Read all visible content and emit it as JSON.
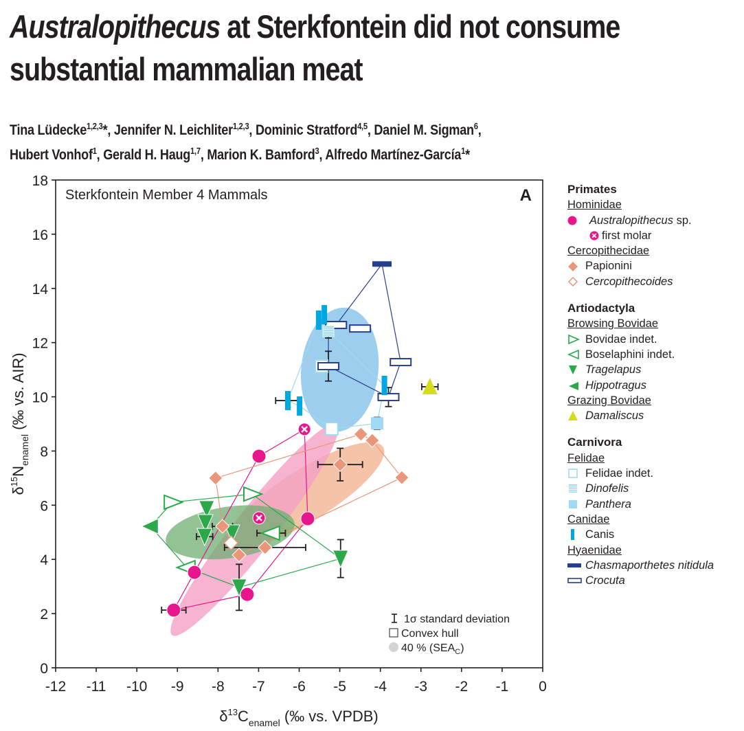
{
  "paper": {
    "title_italic": "Australopithecus",
    "title_rest_line1": " at Sterkfontein did not consume",
    "title_line2": "substantial mammalian meat",
    "authors": [
      {
        "name": "Tina Lüdecke",
        "sup": "1,2,3",
        "mark": "*",
        "sep": ", "
      },
      {
        "name": "Jennifer N. Leichliter",
        "sup": "1,2,3",
        "mark": "",
        "sep": ", "
      },
      {
        "name": "Dominic Stratford",
        "sup": "4,5",
        "mark": "",
        "sep": ", "
      },
      {
        "name": "Daniel M. Sigman",
        "sup": "6",
        "mark": "",
        "sep": ","
      },
      {
        "name": "Hubert Vonhof",
        "sup": "1",
        "mark": "",
        "sep": ", "
      },
      {
        "name": "Gerald H. Haug",
        "sup": "1,7",
        "mark": "",
        "sep": ", "
      },
      {
        "name": "Marion K. Bamford",
        "sup": "3",
        "mark": "",
        "sep": ", "
      },
      {
        "name": "Alfredo Martínez-García",
        "sup": "1",
        "mark": "*",
        "sep": ""
      }
    ]
  },
  "legend": {
    "primates": "Primates",
    "hominidae": "Hominidae",
    "australopithecus": "Australopithecus",
    "australopithecus_sp": " sp.",
    "first_molar": "first molar",
    "cercopithecidae": "Cercopithecidae",
    "papionini": "Papionini",
    "cercopithecoides": "Cercopithecoides",
    "artiodactyla": "Artiodactyla",
    "browsing_bovidae": "Browsing Bovidae",
    "bovidae_indet": "Bovidae indet.",
    "boselaphini_indet": "Boselaphini indet.",
    "tragelapus": "Tragelapus",
    "hippotragus": "Hippotragus",
    "grazing_bovidae": "Grazing Bovidae",
    "damaliscus": "Damaliscus",
    "carnivora": "Carnivora",
    "felidae": "Felidae",
    "felidae_indet": "Felidae indet.",
    "dinofelis": "Dinofelis",
    "panthera": "Panthera",
    "canidae": "Canidae",
    "canis": "Canis",
    "hyaenidae": "Hyaenidae",
    "chasmaporthetes": "Chasmaporthetes nitidula",
    "crocuta": "Crocuta"
  },
  "colors": {
    "australopithecus": "#e9158c",
    "papionini": "#e9967a",
    "bovid": "#2aa84a",
    "damaliscus": "#d4dc1c",
    "felid_light": "#9fd9f2",
    "canis": "#00a7e1",
    "hyena_dark": "#253f8e",
    "sea_pink": "#f4a1c6",
    "sea_salmon": "#f2b899",
    "sea_green": "#6fae72",
    "sea_blue": "#8cc6ea"
  },
  "chart_data": {
    "type": "scatter",
    "panel_label": "A",
    "title": "Sterkfontein Member 4 Mammals",
    "xlabel": {
      "pre": "δ",
      "sup": "13",
      "main": "C",
      "sub": "enamel",
      "post": " (‰ vs. VPDB)"
    },
    "ylabel": {
      "pre": "δ",
      "sup": "15",
      "main": "N",
      "sub": "enamel",
      "post": " (‰ vs.  AIR)"
    },
    "xlim": [
      -12,
      0
    ],
    "ylim": [
      0,
      18
    ],
    "xticks": [
      -12,
      -11,
      -10,
      -9,
      -8,
      -7,
      -6,
      -5,
      -4,
      -3,
      -2,
      -1,
      0
    ],
    "yticks": [
      0,
      2,
      4,
      6,
      8,
      10,
      12,
      14,
      16,
      18
    ],
    "inner_legend": {
      "sd": "1σ standard deviation",
      "hull": "Convex hull",
      "sea": "40 % (SEA",
      "sea_sub": "C",
      "sea_close": ")"
    },
    "ellipses": [
      {
        "group": "carnivora",
        "cx": -5.0,
        "cy": 11.0,
        "rx": 0.95,
        "ry": 2.3,
        "angle": 6,
        "color": "sea_blue"
      },
      {
        "group": "papionini",
        "cx": -5.8,
        "cy": 6.4,
        "rx": 2.2,
        "ry": 0.95,
        "angle": -32,
        "color": "sea_salmon"
      },
      {
        "group": "australopithecus",
        "cx": -7.1,
        "cy": 5.1,
        "rx": 3.3,
        "ry": 0.75,
        "angle": -52,
        "color": "sea_pink"
      },
      {
        "group": "browsing_bovidae",
        "cx": -7.7,
        "cy": 5.0,
        "rx": 1.6,
        "ry": 0.95,
        "angle": -8,
        "color": "sea_green"
      }
    ],
    "series": [
      {
        "name": "Australopithecus sp.",
        "marker": "circle",
        "color": "australopithecus",
        "points": [
          {
            "x": -6.99,
            "y": 7.81
          },
          {
            "x": -5.79,
            "y": 5.5
          },
          {
            "x": -8.58,
            "y": 3.52
          },
          {
            "x": -7.28,
            "y": 2.71
          },
          {
            "x": -9.09,
            "y": 2.13,
            "xerr": 0.3
          }
        ],
        "hull": [
          [
            -9.09,
            2.13
          ],
          [
            -8.58,
            3.52
          ],
          [
            -6.99,
            7.81
          ],
          [
            -5.87,
            8.8
          ],
          [
            -5.79,
            5.5
          ],
          [
            -7.28,
            2.71
          ]
        ]
      },
      {
        "name": "first molar",
        "marker": "circle-x",
        "color": "australopithecus",
        "points": [
          {
            "x": -5.87,
            "y": 8.8
          },
          {
            "x": -6.99,
            "y": 5.53
          }
        ]
      },
      {
        "name": "Papionini",
        "marker": "diamond",
        "color": "papionini",
        "points": [
          {
            "x": -4.48,
            "y": 8.62
          },
          {
            "x": -4.2,
            "y": 8.39
          },
          {
            "x": -3.47,
            "y": 7.02
          },
          {
            "x": -4.99,
            "y": 7.5,
            "xerr": 0.55,
            "yerr": 0.6
          },
          {
            "x": -8.06,
            "y": 7.0
          },
          {
            "x": -7.89,
            "y": 5.22,
            "xerr": 0.25
          },
          {
            "x": -6.84,
            "y": 4.44,
            "xerr": 1.0
          },
          {
            "x": -7.48,
            "y": 4.16
          }
        ],
        "hull": [
          [
            -8.06,
            7.0
          ],
          [
            -4.48,
            8.62
          ],
          [
            -4.2,
            8.39
          ],
          [
            -3.47,
            7.02
          ],
          [
            -7.48,
            4.16
          ],
          [
            -7.89,
            5.22
          ]
        ]
      },
      {
        "name": "Cercopithecoides",
        "marker": "diamond-open",
        "color": "papionini",
        "points": [
          {
            "x": -7.68,
            "y": 4.61
          }
        ]
      },
      {
        "name": "Bovidae indet.",
        "marker": "tri-right-open",
        "color": "bovid",
        "points": [
          {
            "x": -9.12,
            "y": 6.11
          },
          {
            "x": -7.16,
            "y": 6.41
          }
        ]
      },
      {
        "name": "Boselaphini indet.",
        "marker": "tri-left-open",
        "color": "bovid",
        "points": [
          {
            "x": -6.69,
            "y": 4.97,
            "xerr": 0.35
          },
          {
            "x": -8.77,
            "y": 3.7
          }
        ]
      },
      {
        "name": "Tragelapus",
        "marker": "tri-down",
        "color": "bovid",
        "points": [
          {
            "x": -8.28,
            "y": 5.86
          },
          {
            "x": -8.31,
            "y": 5.35
          },
          {
            "x": -8.33,
            "y": 4.84,
            "xerr": 0.2
          },
          {
            "x": -7.65,
            "y": 4.97
          },
          {
            "x": -4.98,
            "y": 4.03,
            "yerr": 0.7
          },
          {
            "x": -7.48,
            "y": 2.97,
            "yerr": 0.85
          }
        ],
        "hull": [
          [
            -9.66,
            5.22
          ],
          [
            -9.12,
            6.11
          ],
          [
            -7.16,
            6.41
          ],
          [
            -4.98,
            4.03
          ],
          [
            -7.48,
            2.97
          ],
          [
            -8.77,
            3.7
          ]
        ]
      },
      {
        "name": "Hippotragus",
        "marker": "tri-left",
        "color": "bovid",
        "points": [
          {
            "x": -9.66,
            "y": 5.22
          }
        ]
      },
      {
        "name": "Damaliscus",
        "marker": "tri-up",
        "color": "damaliscus",
        "points": [
          {
            "x": -2.78,
            "y": 10.37,
            "xerr": 0.2
          }
        ]
      },
      {
        "name": "Felidae indet.",
        "marker": "square-open",
        "color": "felid_light",
        "points": [
          {
            "x": -5.45,
            "y": 11.13
          },
          {
            "x": -5.2,
            "y": 8.82
          }
        ]
      },
      {
        "name": "Dinofelis",
        "marker": "square-striped",
        "color": "felid_light",
        "points": [
          {
            "x": -5.28,
            "y": 12.42,
            "yerr": 0.25
          }
        ]
      },
      {
        "name": "Panthera",
        "marker": "square",
        "color": "felid_light",
        "points": [
          {
            "x": -4.08,
            "y": 9.02,
            "yerr": 0.22
          }
        ]
      },
      {
        "name": "Canis",
        "marker": "bar-v",
        "color": "canis",
        "points": [
          {
            "x": -5.52,
            "y": 12.83
          },
          {
            "x": -5.38,
            "y": 13.03
          },
          {
            "x": -6.28,
            "y": 9.86,
            "xerr": 0.3
          },
          {
            "x": -5.99,
            "y": 9.66
          },
          {
            "x": -3.9,
            "y": 10.42
          }
        ]
      },
      {
        "name": "Chasmaporthetes nitidula",
        "marker": "bar-h",
        "color": "hyena_dark",
        "points": [
          {
            "x": -3.96,
            "y": 14.9
          }
        ]
      },
      {
        "name": "Crocuta",
        "marker": "bar-h-open",
        "color": "hyena_dark",
        "points": [
          {
            "x": -5.09,
            "y": 12.65
          },
          {
            "x": -4.5,
            "y": 12.52
          },
          {
            "x": -5.28,
            "y": 11.13,
            "yerr": 0.55
          },
          {
            "x": -3.5,
            "y": 11.28
          },
          {
            "x": -3.8,
            "y": 9.99,
            "yerr": 0.35
          }
        ]
      }
    ],
    "hulls_extra": [
      {
        "name": "felid-canid",
        "color": "felid_light",
        "points": [
          [
            -5.52,
            12.83
          ],
          [
            -5.28,
            12.42
          ],
          [
            -3.9,
            10.42
          ],
          [
            -4.08,
            9.02
          ],
          [
            -5.2,
            8.82
          ],
          [
            -5.99,
            9.66
          ],
          [
            -6.28,
            9.86
          ]
        ]
      },
      {
        "name": "hyaenid",
        "color": "hyena_dark",
        "points": [
          [
            -5.09,
            12.65
          ],
          [
            -3.96,
            14.9
          ],
          [
            -3.5,
            11.28
          ],
          [
            -3.8,
            9.99
          ],
          [
            -5.28,
            11.13
          ],
          [
            -5.28,
            12.42
          ]
        ]
      }
    ]
  }
}
